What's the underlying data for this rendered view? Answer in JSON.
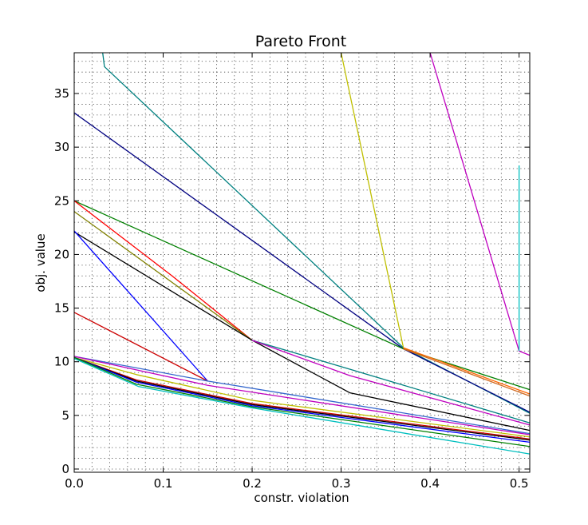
{
  "chart_data": {
    "type": "line",
    "title": "Pareto Front",
    "xlabel": "constr. violation",
    "ylabel": "obj. value",
    "xlim": [
      0.0,
      0.512
    ],
    "ylim": [
      -0.3,
      38.8
    ],
    "xticks": [
      "0.0",
      "0.1",
      "0.2",
      "0.3",
      "0.4",
      "0.5"
    ],
    "yticks": [
      "0",
      "5",
      "10",
      "15",
      "20",
      "25",
      "30",
      "35"
    ],
    "grid": true,
    "legend": "none",
    "series": [
      {
        "color": "#008080",
        "points": [
          [
            0.032,
            38.8
          ],
          [
            0.034,
            37.5
          ],
          [
            0.37,
            11.3
          ],
          [
            0.512,
            5.2
          ]
        ]
      },
      {
        "color": "#000080",
        "points": [
          [
            0.0,
            33.2
          ],
          [
            0.37,
            11.2
          ],
          [
            0.512,
            5.3
          ]
        ]
      },
      {
        "color": "#bfbf00",
        "points": [
          [
            0.3,
            38.8
          ],
          [
            0.37,
            11.3
          ]
        ]
      },
      {
        "color": "#bf00bf",
        "points": [
          [
            0.4,
            38.8
          ],
          [
            0.5,
            11.0
          ],
          [
            0.512,
            10.6
          ]
        ]
      },
      {
        "color": "#00bfbf",
        "points": [
          [
            0.5,
            28.3
          ],
          [
            0.5,
            11.0
          ]
        ]
      },
      {
        "color": "#008000",
        "points": [
          [
            0.0,
            25.0
          ],
          [
            0.37,
            11.2
          ],
          [
            0.512,
            7.4
          ]
        ]
      },
      {
        "color": "#ff0000",
        "points": [
          [
            0.0,
            25.0
          ],
          [
            0.11,
            18.0
          ],
          [
            0.2,
            12.0
          ]
        ]
      },
      {
        "color": "#808000",
        "points": [
          [
            0.0,
            24.0
          ],
          [
            0.2,
            12.0
          ]
        ]
      },
      {
        "color": "#000000",
        "points": [
          [
            0.0,
            22.1
          ],
          [
            0.2,
            12.0
          ],
          [
            0.31,
            7.1
          ],
          [
            0.512,
            3.6
          ]
        ]
      },
      {
        "color": "#0000ff",
        "points": [
          [
            0.0,
            22.2
          ],
          [
            0.15,
            8.2
          ]
        ]
      },
      {
        "color": "#cc0000",
        "points": [
          [
            0.0,
            14.6
          ],
          [
            0.15,
            8.2
          ]
        ]
      },
      {
        "color": "#008080",
        "points": [
          [
            0.2,
            12.0
          ],
          [
            0.31,
            9.3
          ],
          [
            0.512,
            4.3
          ]
        ]
      },
      {
        "color": "#bf00bf",
        "points": [
          [
            0.2,
            12.0
          ],
          [
            0.31,
            8.7
          ],
          [
            0.512,
            4.1
          ]
        ]
      },
      {
        "color": "#d2691e",
        "points": [
          [
            0.37,
            11.2
          ],
          [
            0.512,
            6.8
          ]
        ]
      },
      {
        "color": "#ff6600",
        "points": [
          [
            0.37,
            11.3
          ],
          [
            0.512,
            7.0
          ]
        ]
      },
      {
        "color": "#3366cc",
        "points": [
          [
            0.0,
            10.5
          ],
          [
            0.15,
            8.2
          ],
          [
            0.512,
            3.3
          ]
        ]
      },
      {
        "color": "#bf00bf",
        "points": [
          [
            0.0,
            10.5
          ],
          [
            0.15,
            7.8
          ],
          [
            0.512,
            3.2
          ]
        ]
      },
      {
        "color": "#bfbf00",
        "points": [
          [
            0.0,
            10.4
          ],
          [
            0.07,
            8.8
          ],
          [
            0.2,
            6.4
          ],
          [
            0.512,
            3.0
          ]
        ]
      },
      {
        "color": "#cc0000",
        "points": [
          [
            0.0,
            10.4
          ],
          [
            0.07,
            8.3
          ],
          [
            0.2,
            6.1
          ],
          [
            0.512,
            2.8
          ]
        ]
      },
      {
        "color": "#000000",
        "points": [
          [
            0.0,
            10.4
          ],
          [
            0.07,
            8.2
          ],
          [
            0.2,
            6.0
          ],
          [
            0.512,
            2.7
          ]
        ]
      },
      {
        "color": "#0000ff",
        "points": [
          [
            0.0,
            10.4
          ],
          [
            0.07,
            8.1
          ],
          [
            0.2,
            5.9
          ],
          [
            0.512,
            2.5
          ]
        ]
      },
      {
        "color": "#008000",
        "points": [
          [
            0.0,
            10.4
          ],
          [
            0.07,
            7.9
          ],
          [
            0.2,
            5.8
          ],
          [
            0.512,
            2.1
          ]
        ]
      },
      {
        "color": "#00bfbf",
        "points": [
          [
            0.0,
            10.3
          ],
          [
            0.072,
            7.7
          ],
          [
            0.2,
            5.7
          ],
          [
            0.512,
            1.4
          ]
        ]
      }
    ]
  }
}
